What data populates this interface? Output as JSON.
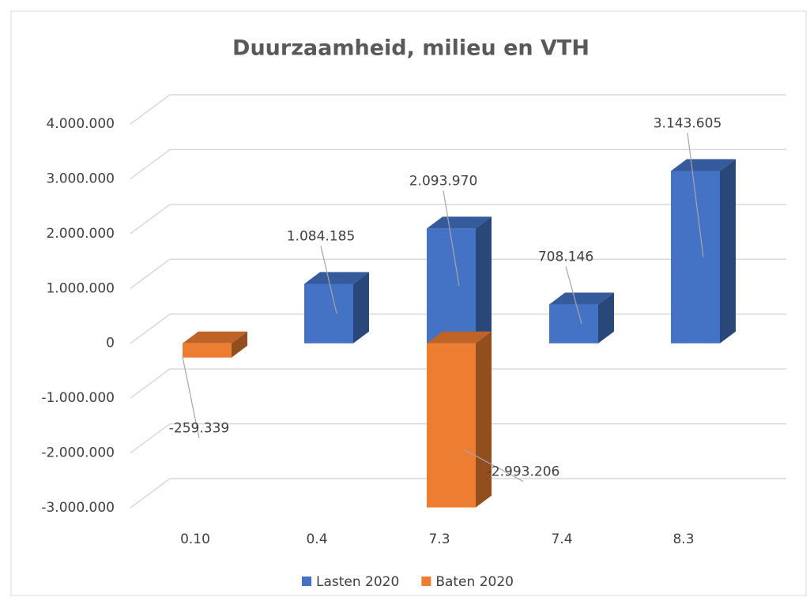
{
  "chart_data": {
    "type": "bar3d_stacked",
    "title": "Duurzaamheid, milieu en VTH",
    "categories": [
      "0.10",
      "0.4",
      "7.3",
      "7.4",
      "8.3"
    ],
    "series": [
      {
        "name": "Lasten 2020",
        "color": "#4472c4",
        "values": [
          null,
          1084185,
          2093970,
          708146,
          3143605
        ],
        "value_labels": [
          null,
          "1.084.185",
          "2.093.970",
          "708.146",
          "3.143.605"
        ]
      },
      {
        "name": "Baten 2020",
        "color": "#ed7d31",
        "values": [
          -259339,
          null,
          -2993206,
          null,
          null
        ],
        "value_labels": [
          "-259.339",
          null,
          "-2.993.206",
          null,
          null
        ]
      }
    ],
    "ylim": [
      -3000000,
      4000000
    ],
    "yticks": [
      {
        "value": -3000000,
        "label": "-3.000.000"
      },
      {
        "value": -2000000,
        "label": "-2.000.000"
      },
      {
        "value": -1000000,
        "label": "-1.000.000"
      },
      0,
      {
        "value": 1000000,
        "label": "1.000.000"
      },
      {
        "value": 2000000,
        "label": "2.000.000"
      },
      {
        "value": 3000000,
        "label": "3.000.000"
      },
      {
        "value": 4000000,
        "label": "4.000.000"
      }
    ],
    "grid": true,
    "legend": "bottom"
  }
}
